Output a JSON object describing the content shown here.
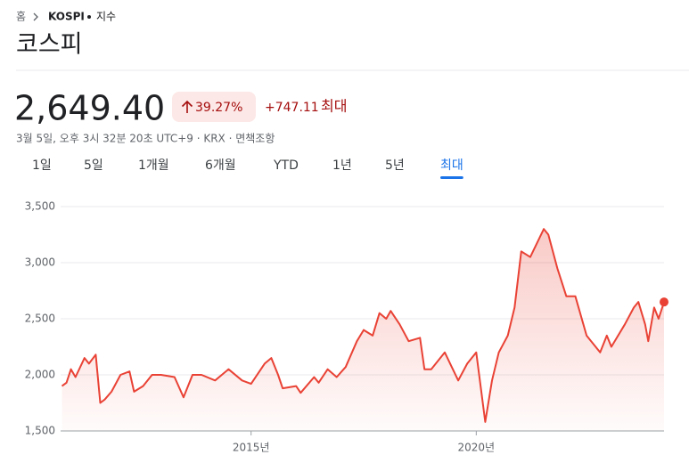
{
  "breadcrumb": {
    "home": "홈",
    "symbol": "KOSPI",
    "kind": "지수"
  },
  "title": "코스피",
  "price": "2,649.40",
  "change_percent": "39.27%",
  "change": "+747.11",
  "period_label": "최대",
  "timestamp": "3월 5일, 오후 3시 32분 20초 UTC+9 · KRX · 면책조항",
  "tabs": [
    "1일",
    "5일",
    "1개월",
    "6개월",
    "YTD",
    "1년",
    "5년",
    "최대"
  ],
  "chart_data": {
    "type": "line",
    "color": "#e94235",
    "x": [
      2010.8,
      2010.9,
      2011.0,
      2011.1,
      2011.3,
      2011.4,
      2011.55,
      2011.65,
      2011.75,
      2011.9,
      2012.1,
      2012.3,
      2012.4,
      2012.6,
      2012.8,
      2013.0,
      2013.3,
      2013.5,
      2013.7,
      2013.9,
      2014.2,
      2014.5,
      2014.8,
      2015.0,
      2015.3,
      2015.45,
      2015.6,
      2015.7,
      2016.0,
      2016.1,
      2016.4,
      2016.5,
      2016.7,
      2016.9,
      2017.1,
      2017.35,
      2017.5,
      2017.7,
      2017.85,
      2018.0,
      2018.1,
      2018.3,
      2018.5,
      2018.75,
      2018.85,
      2019.0,
      2019.3,
      2019.6,
      2019.8,
      2020.0,
      2020.2,
      2020.35,
      2020.5,
      2020.7,
      2020.85,
      2021.0,
      2021.2,
      2021.5,
      2021.6,
      2021.8,
      2022.0,
      2022.2,
      2022.45,
      2022.75,
      2022.9,
      2023.0,
      2023.3,
      2023.5,
      2023.6,
      2023.75,
      2023.82,
      2023.95,
      2024.05,
      2024.17
    ],
    "values": [
      1900,
      1930,
      2050,
      1980,
      2150,
      2100,
      2180,
      1750,
      1780,
      1850,
      2000,
      2030,
      1850,
      1900,
      2000,
      2000,
      1980,
      1800,
      2000,
      2000,
      1950,
      2050,
      1950,
      1920,
      2100,
      2150,
      2000,
      1880,
      1900,
      1840,
      1980,
      1930,
      2050,
      1980,
      2070,
      2300,
      2400,
      2350,
      2550,
      2500,
      2570,
      2450,
      2300,
      2330,
      2050,
      2050,
      2200,
      1950,
      2100,
      2200,
      1580,
      1950,
      2200,
      2350,
      2600,
      3100,
      3050,
      3300,
      3250,
      2950,
      2700,
      2700,
      2350,
      2200,
      2350,
      2250,
      2450,
      2600,
      2650,
      2450,
      2300,
      2600,
      2500,
      2649.4
    ],
    "xlim": [
      2010.77,
      2024.17
    ],
    "xticks": [
      {
        "value": 2015,
        "label": "2015년"
      },
      {
        "value": 2020,
        "label": "2020년"
      }
    ],
    "ylim": [
      1500,
      3500
    ],
    "yticks": [
      {
        "value": 1500,
        "label": "1,500"
      },
      {
        "value": 2000,
        "label": "2,000"
      },
      {
        "value": 2500,
        "label": "2,500"
      },
      {
        "value": 3000,
        "label": "3,000"
      },
      {
        "value": 3500,
        "label": "3,500"
      }
    ],
    "grid": true
  }
}
